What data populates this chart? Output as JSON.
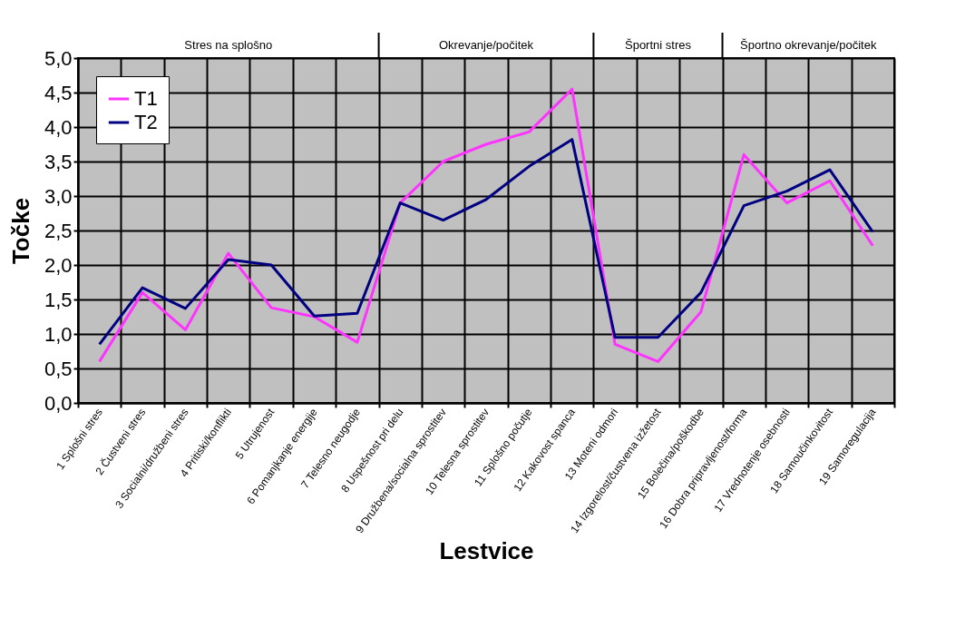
{
  "chart_data": {
    "type": "line",
    "xlabel": "Lestvice",
    "ylabel": "Točke",
    "categories": [
      "1 Splošni stres",
      "2 Čustveni stres",
      "3 Socialni/družbeni stres",
      "4 Pritiski/konflikti",
      "5 Utrujenost",
      "6 Pomanjkanje energije",
      "7 Telesno neugodje",
      "8 Uspešnost pri delu",
      "9 Družbena/socialna sprostitev",
      "10 Telesna sprostitev",
      "11 Splošno počutje",
      "12 Kakovost spanca",
      "13 Moteni odmori",
      "14 Izgorelost/čustvena izžetost",
      "15 Bolečina/poškodbe",
      "16 Dobra pripravljenost/forma",
      "17 Vrednotenje osebnosti",
      "18 Samoučinkovitost",
      "19 Samoregulacija"
    ],
    "series": [
      {
        "name": "T1",
        "color": "#ff33ff",
        "values": [
          0.6,
          1.6,
          1.06,
          2.17,
          1.38,
          1.25,
          0.88,
          2.9,
          3.5,
          3.75,
          3.93,
          4.55,
          0.85,
          0.6,
          1.32,
          3.6,
          2.9,
          3.22,
          2.28
        ]
      },
      {
        "name": "T2",
        "color": "#000080",
        "values": [
          0.85,
          1.67,
          1.37,
          2.08,
          2.0,
          1.26,
          1.3,
          2.9,
          2.65,
          2.95,
          3.43,
          3.82,
          0.95,
          0.95,
          1.6,
          2.86,
          3.07,
          3.38,
          2.48
        ]
      }
    ],
    "ylim": [
      0,
      5
    ],
    "yticks": [
      {
        "value": 0,
        "label": "0,0"
      },
      {
        "value": 0.5,
        "label": "0,5"
      },
      {
        "value": 1,
        "label": "1,0"
      },
      {
        "value": 1.5,
        "label": "1,5"
      },
      {
        "value": 2,
        "label": "2,0"
      },
      {
        "value": 2.5,
        "label": "2,5"
      },
      {
        "value": 3,
        "label": "3,0"
      },
      {
        "value": 3.5,
        "label": "3,5"
      },
      {
        "value": 4,
        "label": "4,0"
      },
      {
        "value": 4.5,
        "label": "4,5"
      },
      {
        "value": 5,
        "label": "5,0"
      }
    ],
    "annotations": [
      "Stres na splošno",
      "Okrevanje/počitek",
      "Športni stres",
      "Športno okrevanje/počitek"
    ],
    "grid": true,
    "legend": "top left",
    "marker": "none",
    "line_style": "solid"
  }
}
